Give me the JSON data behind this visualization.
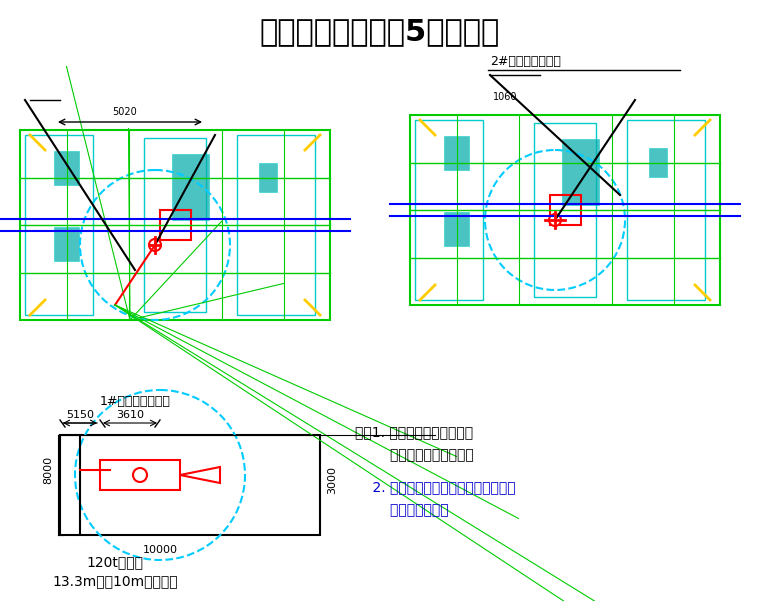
{
  "title": "吊装平面图（锌锅5片供货）",
  "title_fontsize": 22,
  "bg_color": "#ffffff",
  "label_1": "1#热镀锌机组锌锅",
  "label_2": "2#热镀锌机组锌锅",
  "label_crane": "120t汽车吊\n13.3m杆，10m作业半径",
  "note_line1": "注：1. 吊车行走道路需回填、",
  "note_line2": "        夯实、面层施工完成；",
  "note_line3": "    2. 吊车走行路线上，无地下室孔洞，",
  "note_line4": "        全为实心基础。",
  "dim_5150": "5150",
  "dim_3610": "3610",
  "dim_8000": "8000",
  "dim_10000": "10000",
  "dim_3000": "3000",
  "green_main": "#00cc00",
  "cyan_accent": "#00cccc",
  "red_accent": "#ff0000",
  "blue_line": "#0000ff",
  "yellow_accent": "#ffff00",
  "dark_line": "#333333"
}
